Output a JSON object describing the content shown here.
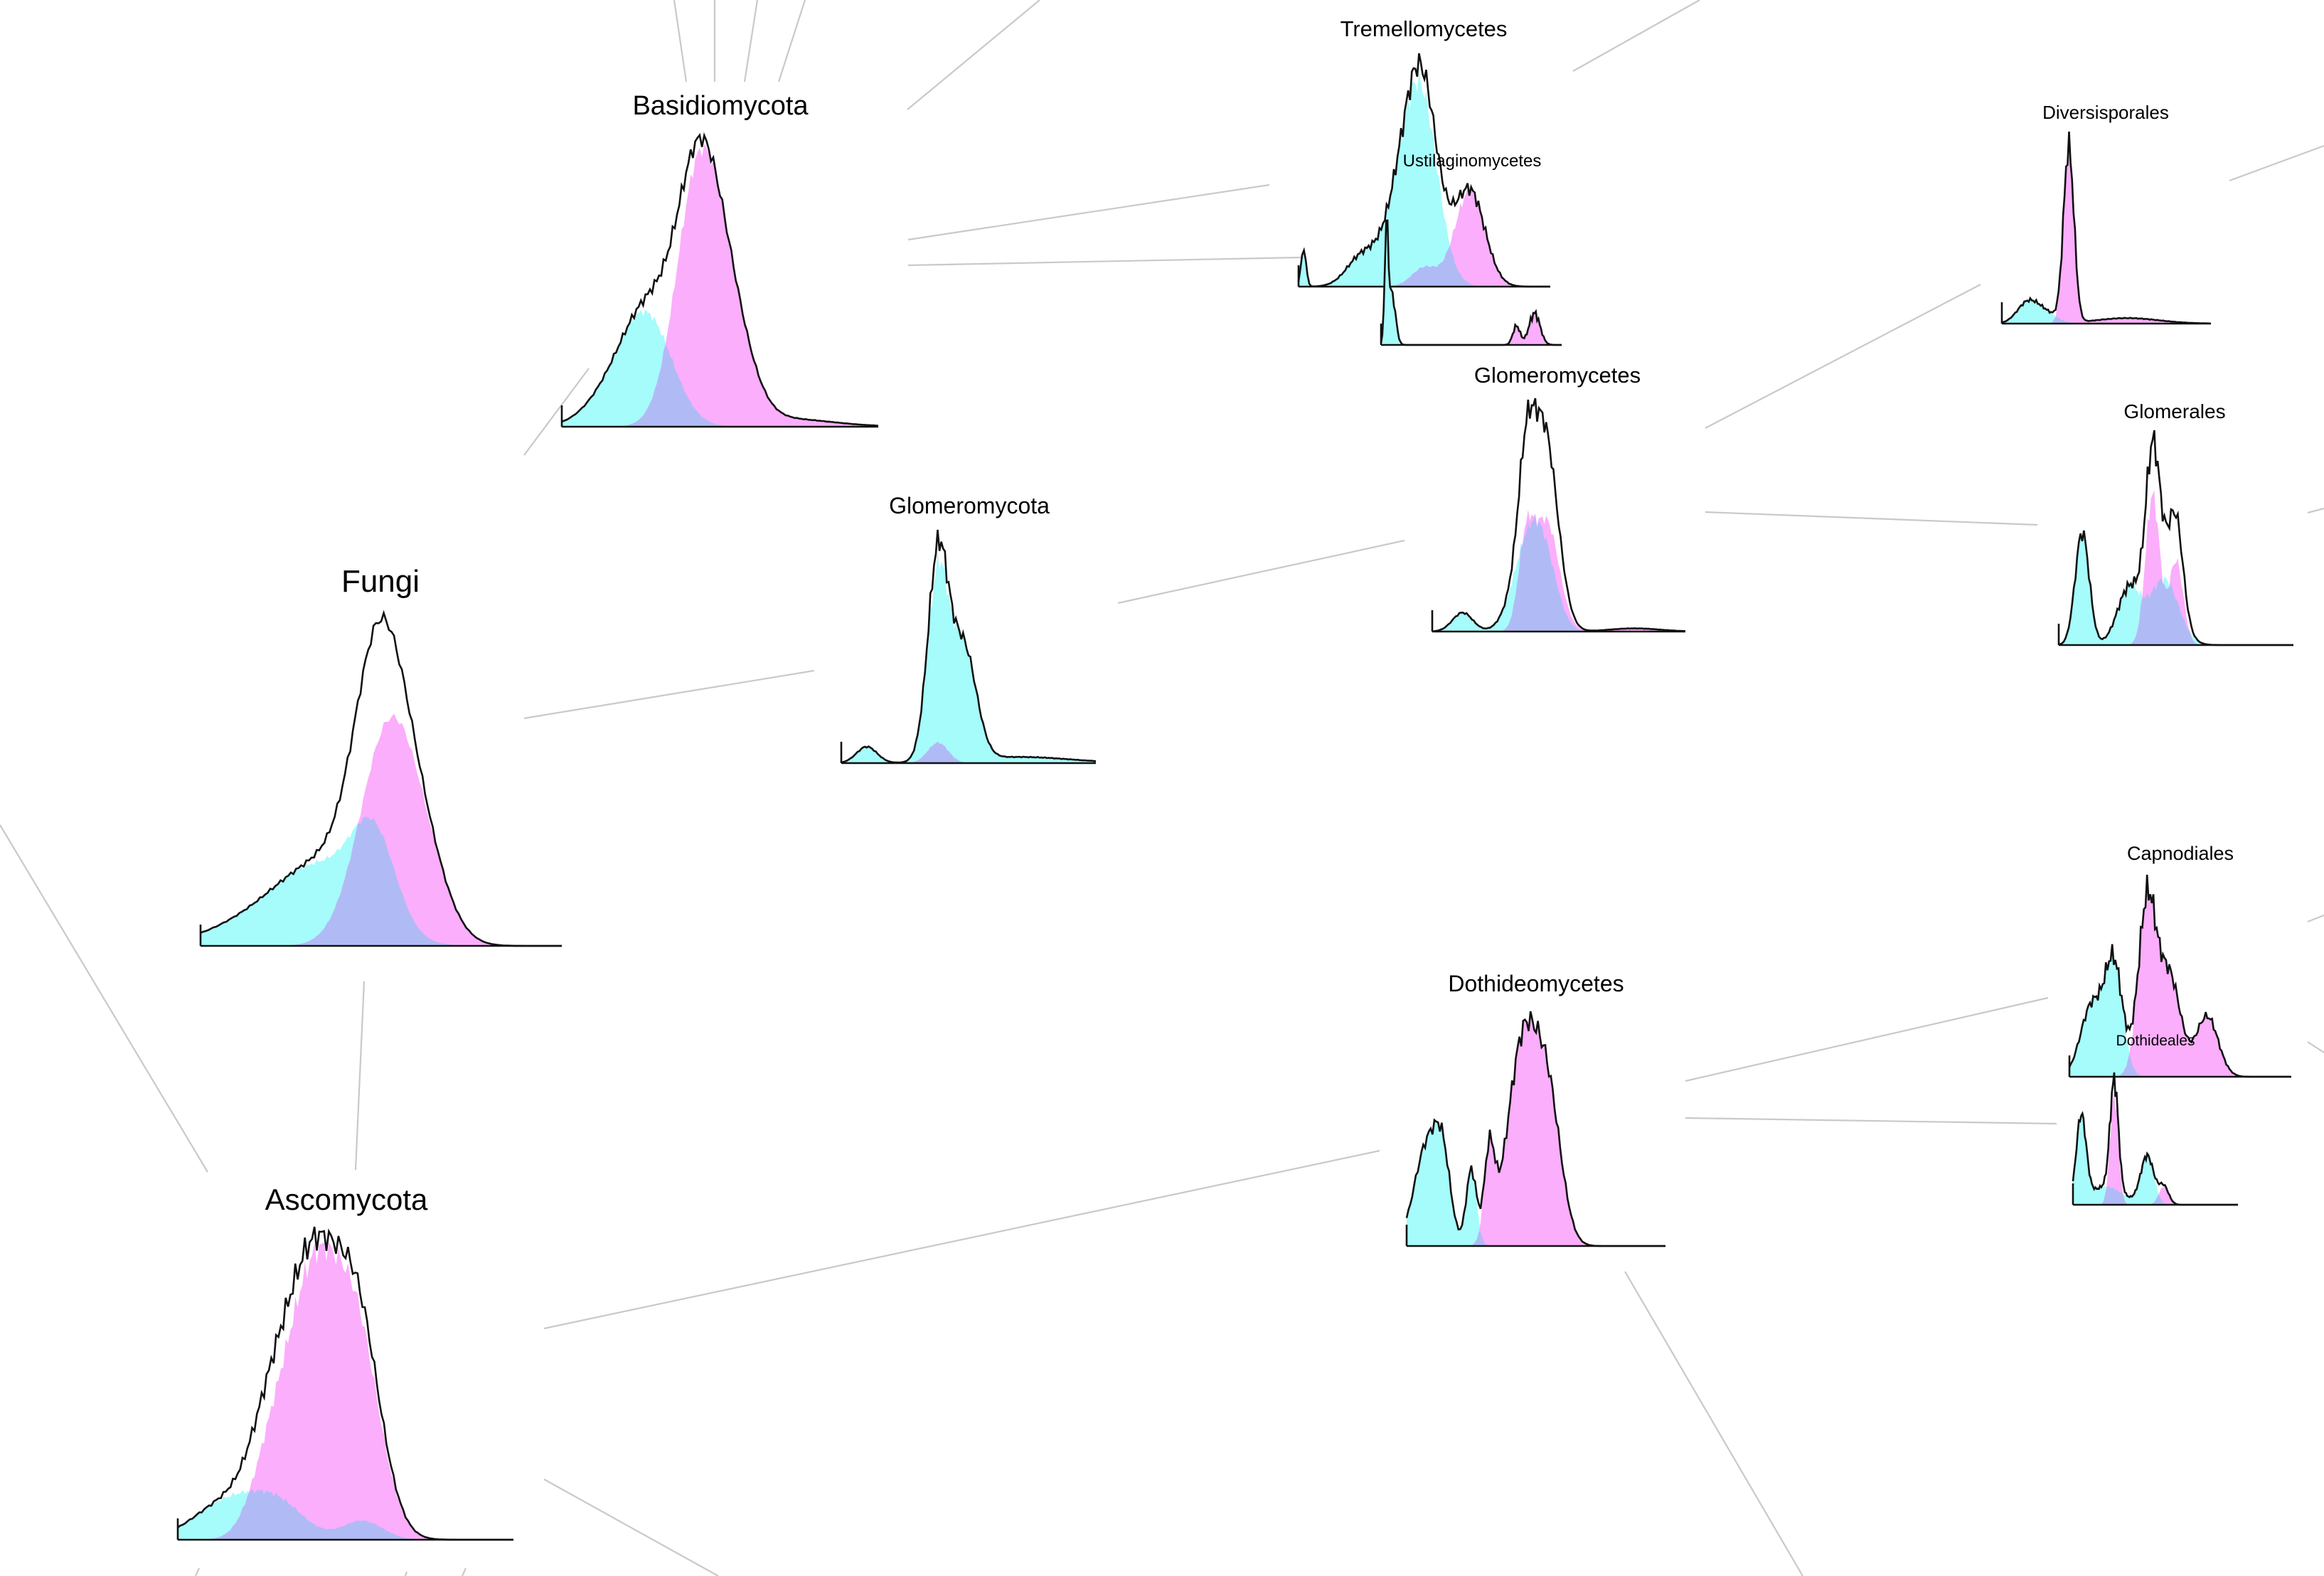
{
  "diagram": {
    "type": "taxonomy-tree-with-density-plots",
    "colors": {
      "cyan": "#a6fbfb",
      "magenta": "#fbaafb",
      "overlap": "#b0bbf6",
      "outline": "#111111",
      "edge": "#c9c9c9"
    },
    "nodes": [
      {
        "id": "fungi",
        "label": "Fungi"
      },
      {
        "id": "basidiomycota",
        "label": "Basidiomycota"
      },
      {
        "id": "glomeromycota",
        "label": "Glomeromycota"
      },
      {
        "id": "ascomycota",
        "label": "Ascomycota"
      },
      {
        "id": "tremellomycetes",
        "label": "Tremellomycetes"
      },
      {
        "id": "ustilaginomycetes",
        "label": "Ustilaginomycetes"
      },
      {
        "id": "glomeromycetes",
        "label": "Glomeromycetes"
      },
      {
        "id": "dothideomycetes",
        "label": "Dothideomycetes"
      },
      {
        "id": "diversisporales",
        "label": "Diversisporales"
      },
      {
        "id": "glomerales",
        "label": "Glomerales"
      },
      {
        "id": "capnodiales",
        "label": "Capnodiales"
      },
      {
        "id": "dothideales",
        "label": "Dothideales"
      }
    ],
    "edges": [
      [
        "fungi",
        "basidiomycota"
      ],
      [
        "fungi",
        "glomeromycota"
      ],
      [
        "fungi",
        "ascomycota"
      ],
      [
        "basidiomycota",
        "tremellomycetes"
      ],
      [
        "basidiomycota",
        "ustilaginomycetes"
      ],
      [
        "glomeromycota",
        "glomeromycetes"
      ],
      [
        "ascomycota",
        "dothideomycetes"
      ],
      [
        "glomeromycetes",
        "diversisporales"
      ],
      [
        "glomeromycetes",
        "glomerales"
      ],
      [
        "dothideomycetes",
        "capnodiales"
      ],
      [
        "dothideomycetes",
        "dothideales"
      ]
    ]
  }
}
